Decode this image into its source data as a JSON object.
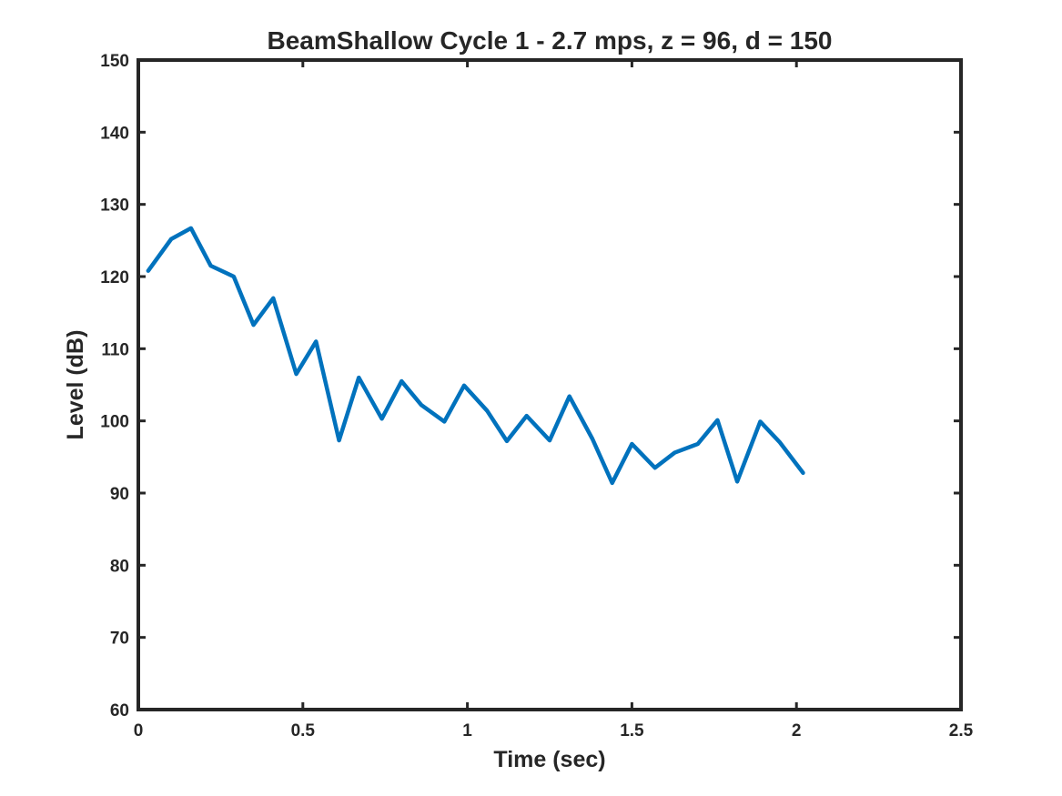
{
  "chart_data": {
    "type": "line",
    "title": "BeamShallow Cycle 1 - 2.7 mps, z = 96, d = 150",
    "xlabel": "Time (sec)",
    "ylabel": "Level (dB)",
    "xlim": [
      0,
      2.5
    ],
    "ylim": [
      60,
      150
    ],
    "xticks": [
      0,
      0.5,
      1,
      1.5,
      2,
      2.5
    ],
    "xtick_labels": [
      "0",
      "0.5",
      "1",
      "1.5",
      "2",
      "2.5"
    ],
    "yticks": [
      60,
      70,
      80,
      90,
      100,
      110,
      120,
      130,
      140,
      150
    ],
    "ytick_labels": [
      "60",
      "70",
      "80",
      "90",
      "100",
      "110",
      "120",
      "130",
      "140",
      "150"
    ],
    "grid": false,
    "series": [
      {
        "color": "#0072BD",
        "x": [
          0.03,
          0.1,
          0.16,
          0.22,
          0.29,
          0.35,
          0.41,
          0.48,
          0.54,
          0.61,
          0.67,
          0.74,
          0.8,
          0.86,
          0.93,
          0.99,
          1.06,
          1.12,
          1.18,
          1.25,
          1.31,
          1.38,
          1.44,
          1.5,
          1.57,
          1.63,
          1.7,
          1.76,
          1.82,
          1.89,
          1.95,
          2.02
        ],
        "y": [
          120.8,
          125.2,
          126.7,
          121.5,
          120.0,
          113.3,
          117.0,
          106.5,
          111.0,
          97.3,
          106.0,
          100.3,
          105.5,
          102.2,
          99.9,
          104.9,
          101.4,
          97.2,
          100.7,
          97.3,
          103.4,
          97.5,
          91.4,
          96.8,
          93.5,
          95.6,
          96.8,
          100.1,
          91.6,
          99.9,
          97.0,
          92.8
        ]
      }
    ]
  }
}
